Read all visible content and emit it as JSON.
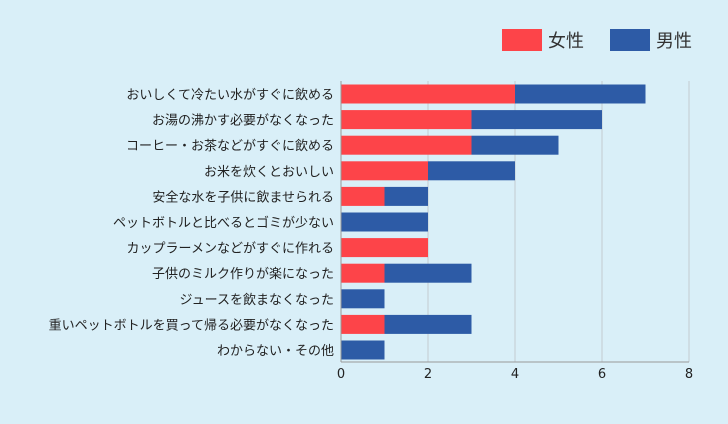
{
  "chart_data": {
    "type": "bar",
    "orientation": "horizontal",
    "stacked": true,
    "categories": [
      "おいしくて冷たい水がすぐに飲める",
      "お湯の沸かす必要がなくなった",
      "コーヒー・お茶などがすぐに飲める",
      "お米を炊くとおいしい",
      "安全な水を子供に飲ませられる",
      "ペットボトルと比べるとゴミが少ない",
      "カップラーメンなどがすぐに作れる",
      "子供のミルク作りが楽になった",
      "ジュースを飲まなくなった",
      "重いペットボトルを買って帰る必要がなくなった",
      "わからない・その他"
    ],
    "series": [
      {
        "name": "女性",
        "color": "#fd4449",
        "values": [
          4,
          3,
          3,
          2,
          1,
          0,
          2,
          1,
          0,
          1,
          0
        ]
      },
      {
        "name": "男性",
        "color": "#2d5ba6",
        "values": [
          3,
          3,
          2,
          2,
          1,
          2,
          0,
          2,
          1,
          2,
          1
        ]
      }
    ],
    "xlim": [
      0,
      8
    ],
    "xticks": [
      "0",
      "2",
      "4",
      "6",
      "8"
    ],
    "grid": true,
    "legend_position": "top-right"
  }
}
